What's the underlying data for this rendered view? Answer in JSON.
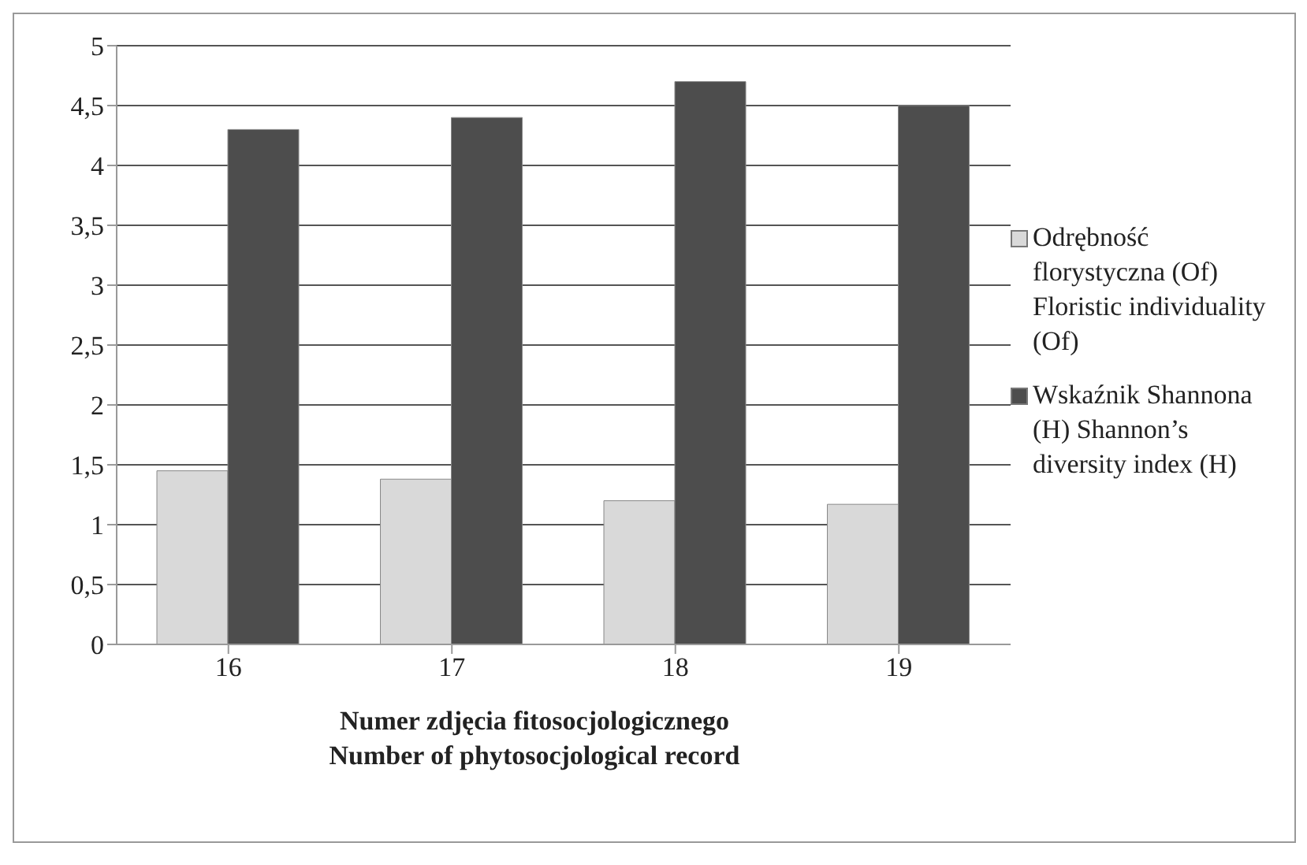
{
  "chart_data": {
    "type": "bar",
    "xlabel": "Numer zdjęcia fitosocjologicznego\nNumber of phytosocjological record",
    "categories": [
      "16",
      "17",
      "18",
      "19"
    ],
    "series": [
      {
        "name": "Odrębność florystyczna (Of) Floristic individuality (Of)",
        "color": "#d9d9d9",
        "values": [
          1.45,
          1.38,
          1.2,
          1.17
        ]
      },
      {
        "name": "Wskaźnik Shannona (H) Shannon’s diversity index (H)",
        "color": "#4d4d4d",
        "values": [
          4.3,
          4.4,
          4.7,
          4.5
        ]
      }
    ],
    "ylim": [
      0,
      5
    ],
    "yticks": [
      {
        "value": 0,
        "label": "0"
      },
      {
        "value": 0.5,
        "label": "0,5"
      },
      {
        "value": 1,
        "label": "1"
      },
      {
        "value": 1.5,
        "label": "1,5"
      },
      {
        "value": 2,
        "label": "2"
      },
      {
        "value": 2.5,
        "label": "2,5"
      },
      {
        "value": 3,
        "label": "3"
      },
      {
        "value": 3.5,
        "label": "3,5"
      },
      {
        "value": 4,
        "label": "4"
      },
      {
        "value": 4.5,
        "label": "4,5"
      },
      {
        "value": 5,
        "label": "5"
      }
    ],
    "grid": "y",
    "legend": "right"
  }
}
